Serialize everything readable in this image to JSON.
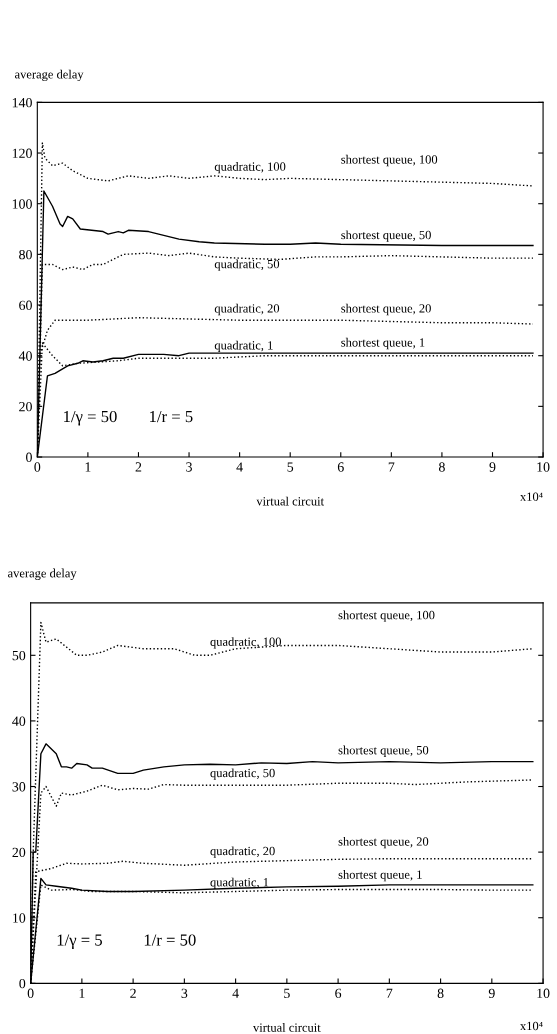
{
  "chart_data": [
    {
      "type": "line",
      "ylabel": "average delay",
      "xlabel": "virtual circuit",
      "xlim": [
        0,
        10
      ],
      "ylim": [
        0,
        140
      ],
      "xticks": [
        0,
        1,
        2,
        3,
        4,
        5,
        6,
        7,
        8,
        9,
        10
      ],
      "yticks": [
        0,
        20,
        40,
        60,
        80,
        100,
        120,
        140
      ],
      "grid": false,
      "marker": "none",
      "series": [
        {
          "color": "#000000",
          "line_style": "dotted",
          "x": [
            0,
            0.1,
            0.15,
            0.3,
            0.5,
            0.7,
            1,
            1.4,
            1.8,
            2.2,
            2.6,
            3,
            3.5,
            4,
            4.5,
            5,
            6,
            7,
            8,
            9,
            9.8
          ],
          "values": [
            0,
            124,
            118,
            115,
            116,
            113,
            110,
            109,
            111,
            110,
            111,
            110,
            111,
            110,
            109.5,
            110,
            109.5,
            109,
            108.5,
            108,
            107
          ]
        },
        {
          "color": "#000000",
          "line_style": "solid",
          "x": [
            0,
            0.13,
            0.3,
            0.45,
            0.5,
            0.6,
            0.7,
            0.85,
            1.3,
            1.4,
            1.6,
            1.7,
            1.8,
            2.2,
            2.6,
            2.8,
            3.2,
            3.5,
            4.5,
            5,
            5.5,
            6,
            8,
            9.8
          ],
          "values": [
            0,
            105,
            99,
            92,
            91,
            95,
            94,
            90,
            89,
            88,
            89,
            88.5,
            89.5,
            89,
            87,
            86,
            85,
            84.5,
            84,
            84,
            84.5,
            84,
            83.5,
            83.5
          ]
        },
        {
          "color": "#000000",
          "line_style": "dotted",
          "x": [
            0,
            0.1,
            0.3,
            0.5,
            0.7,
            0.9,
            1.1,
            1.3,
            1.7,
            2.2,
            2.6,
            3,
            3.5,
            4,
            4.8,
            5.5,
            6,
            7,
            8,
            9,
            9.8
          ],
          "values": [
            0,
            76,
            76,
            74,
            75,
            74,
            76,
            76,
            80,
            80.5,
            79.5,
            80.5,
            79,
            78.5,
            78,
            79,
            79,
            79.5,
            79,
            78.5,
            78.5
          ]
        },
        {
          "color": "#000000",
          "line_style": "dotted",
          "x": [
            0,
            0.05,
            0.2,
            0.35,
            1,
            2,
            3,
            4,
            5,
            6,
            7,
            8,
            9,
            9.8
          ],
          "values": [
            0,
            40,
            50,
            54,
            54,
            55,
            54.5,
            54,
            54,
            54,
            53.5,
            53,
            53,
            52.5
          ]
        },
        {
          "color": "#000000",
          "line_style": "solid",
          "x": [
            0,
            0.2,
            0.35,
            0.6,
            0.8,
            0.9,
            1.1,
            1.3,
            1.5,
            1.7,
            2,
            2.5,
            2.8,
            3,
            3.5,
            4,
            5,
            6,
            7,
            8,
            9.8
          ],
          "values": [
            0,
            32,
            33,
            36,
            37,
            38,
            37.5,
            38,
            39,
            39,
            40.5,
            40.5,
            40,
            41,
            41,
            41,
            41,
            41,
            41,
            41,
            41
          ]
        },
        {
          "color": "#000000",
          "line_style": "dotted",
          "x": [
            0,
            0.1,
            0.3,
            0.5,
            0.8,
            1.2,
            1.6,
            2,
            2.5,
            3,
            3.5,
            4,
            4.5,
            5,
            6,
            7,
            8,
            9,
            9.8
          ],
          "values": [
            0,
            45,
            40,
            36,
            37,
            37.5,
            38,
            39,
            39,
            39,
            39,
            39.5,
            40,
            40,
            40,
            40,
            40,
            40,
            40
          ]
        }
      ],
      "annotations": [
        "quadratic, 100",
        "shortest queue, 100",
        "shortest queue, 50",
        "quadratic, 50",
        "quadratic, 20",
        "shortest queue, 20",
        "quadratic, 1",
        "shortest queue, 1",
        "1/γ = 50",
        "1/r = 5",
        "x10⁴"
      ]
    },
    {
      "type": "line",
      "ylabel": "average delay",
      "xlabel": "virtual circuit",
      "xlim": [
        0,
        10
      ],
      "ylim": [
        0,
        58
      ],
      "xticks": [
        0,
        1,
        2,
        3,
        4,
        5,
        6,
        7,
        8,
        9,
        10
      ],
      "yticks": [
        0,
        10,
        20,
        30,
        40,
        50
      ],
      "grid": false,
      "marker": "none",
      "series": [
        {
          "color": "#000000",
          "line_style": "dotted",
          "x": [
            0,
            0.05,
            0.2,
            0.3,
            0.5,
            0.9,
            1.1,
            1.4,
            1.7,
            2.2,
            2.8,
            3.2,
            3.5,
            4,
            5,
            6,
            7,
            8,
            9,
            9.8
          ],
          "values": [
            0,
            20,
            55,
            52,
            52.5,
            50,
            50,
            50.5,
            51.5,
            51,
            51,
            50,
            50,
            51,
            51.5,
            51.5,
            51,
            50.5,
            50.5,
            51
          ]
        },
        {
          "color": "#000000",
          "line_style": "solid",
          "x": [
            0,
            0.05,
            0.1,
            0.2,
            0.3,
            0.5,
            0.6,
            0.7,
            0.8,
            0.9,
            1.1,
            1.2,
            1.4,
            1.7,
            2,
            2.2,
            2.6,
            3,
            3.5,
            4,
            4.5,
            5,
            5.5,
            6,
            7,
            8,
            9,
            9.8
          ],
          "values": [
            0,
            20,
            20,
            35,
            36.5,
            35,
            33,
            33,
            32.8,
            33.5,
            33.3,
            32.8,
            32.8,
            32,
            32,
            32.5,
            33,
            33.3,
            33.4,
            33.3,
            33.6,
            33.5,
            33.8,
            33.6,
            33.8,
            33.6,
            33.8,
            33.8
          ]
        },
        {
          "color": "#000000",
          "line_style": "dotted",
          "x": [
            0,
            0.2,
            0.3,
            0.4,
            0.5,
            0.6,
            0.8,
            1.1,
            1.4,
            1.7,
            2,
            2.3,
            2.6,
            3,
            4,
            5,
            6,
            7,
            7.5,
            8.5,
            9.8
          ],
          "values": [
            0,
            29,
            30,
            28.5,
            27,
            29,
            28.7,
            29.3,
            30.2,
            29.5,
            29.7,
            29.6,
            30.3,
            30.2,
            30.2,
            30.2,
            30.5,
            30.5,
            30.3,
            30.7,
            31
          ]
        },
        {
          "color": "#000000",
          "line_style": "dotted",
          "x": [
            0,
            0.1,
            0.4,
            0.7,
            1,
            1.5,
            1.8,
            2.2,
            3,
            4,
            5,
            6,
            7,
            8,
            9,
            9.8
          ],
          "values": [
            0,
            17,
            17.5,
            18.3,
            18.2,
            18.3,
            18.6,
            18.3,
            18,
            18.5,
            18.7,
            18.9,
            19,
            19,
            19,
            19
          ]
        },
        {
          "color": "#000000",
          "line_style": "solid",
          "x": [
            0,
            0.2,
            0.3,
            0.5,
            0.8,
            1,
            1.5,
            2,
            3,
            4,
            5,
            6,
            7,
            8,
            9,
            9.8
          ],
          "values": [
            0,
            16,
            15,
            14.8,
            14.5,
            14.2,
            14,
            14,
            14.2,
            14.5,
            14.7,
            14.8,
            15,
            15,
            15,
            15
          ]
        },
        {
          "color": "#000000",
          "line_style": "dotted",
          "x": [
            0,
            0.2,
            0.4,
            0.8,
            1.2,
            2,
            3,
            4,
            5,
            6,
            7,
            8,
            9,
            9.8
          ],
          "values": [
            0,
            15,
            14.2,
            14.3,
            14,
            14,
            13.8,
            14,
            14.2,
            14.3,
            14.3,
            14.3,
            14.2,
            14.2
          ]
        }
      ],
      "annotations": [
        "shortest queue, 100",
        "quadratic, 100",
        "shortest queue, 50",
        "quadratic, 50",
        "shortest queue, 20",
        "quadratic, 20",
        "shortest queue, 1",
        "quadratic, 1",
        "1/γ = 5",
        "1/r = 50",
        "x10⁴"
      ]
    }
  ]
}
